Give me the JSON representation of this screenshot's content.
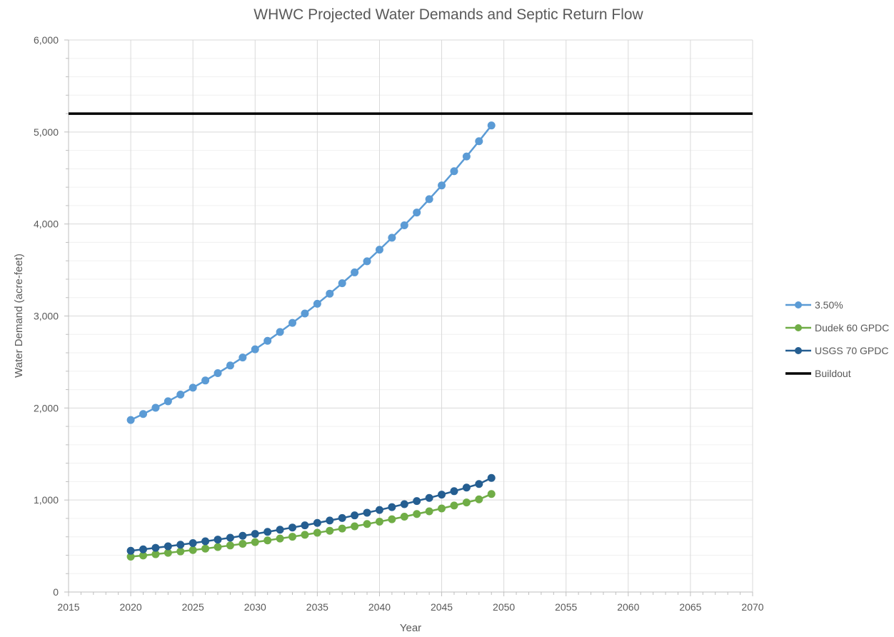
{
  "chart_data": {
    "type": "line",
    "title": "WHWC Projected Water Demands and Septic Return Flow",
    "xlabel": "Year",
    "ylabel": "Water Demand (acre-feet)",
    "xlim": [
      2015,
      2070
    ],
    "ylim": [
      0,
      6000
    ],
    "x_ticks": [
      "2015",
      "2020",
      "2025",
      "2030",
      "2035",
      "2040",
      "2045",
      "2050",
      "2055",
      "2060",
      "2065",
      "2070"
    ],
    "y_ticks": [
      "0",
      "1,000",
      "2,000",
      "3,000",
      "4,000",
      "5,000",
      "6,000"
    ],
    "grid": true,
    "legend_position": "right",
    "x": [
      2020,
      2021,
      2022,
      2023,
      2024,
      2025,
      2026,
      2027,
      2028,
      2029,
      2030,
      2031,
      2032,
      2033,
      2034,
      2035,
      2036,
      2037,
      2038,
      2039,
      2040,
      2041,
      2042,
      2043,
      2044,
      2045,
      2046,
      2047,
      2048,
      2049
    ],
    "series": [
      {
        "name": "3.50%",
        "color": "#5b9bd5",
        "markers": true,
        "values": [
          1870,
          1935,
          2003,
          2073,
          2146,
          2221,
          2299,
          2379,
          2462,
          2549,
          2638,
          2730,
          2826,
          2925,
          3027,
          3133,
          3243,
          3356,
          3474,
          3595,
          3721,
          3851,
          3986,
          4125,
          4270,
          4419,
          4574,
          4734,
          4900,
          5071
        ]
      },
      {
        "name": "Dudek 60 GPDC",
        "color": "#70ad47",
        "markers": true,
        "values": [
          384,
          397,
          411,
          426,
          441,
          456,
          472,
          489,
          506,
          524,
          542,
          561,
          581,
          601,
          622,
          644,
          666,
          690,
          714,
          739,
          765,
          791,
          819,
          848,
          877,
          908,
          940,
          973,
          1007,
          1065
        ]
      },
      {
        "name": "USGS 70 GPDC",
        "color": "#255e91",
        "markers": true,
        "values": [
          448,
          464,
          480,
          497,
          514,
          532,
          551,
          570,
          590,
          611,
          632,
          654,
          677,
          701,
          725,
          751,
          777,
          804,
          833,
          862,
          892,
          923,
          955,
          989,
          1023,
          1059,
          1096,
          1135,
          1174,
          1240
        ]
      },
      {
        "name": "Buildout",
        "color": "#000000",
        "markers": false,
        "x": [
          2015,
          2070
        ],
        "values": [
          5200,
          5200
        ]
      }
    ]
  }
}
